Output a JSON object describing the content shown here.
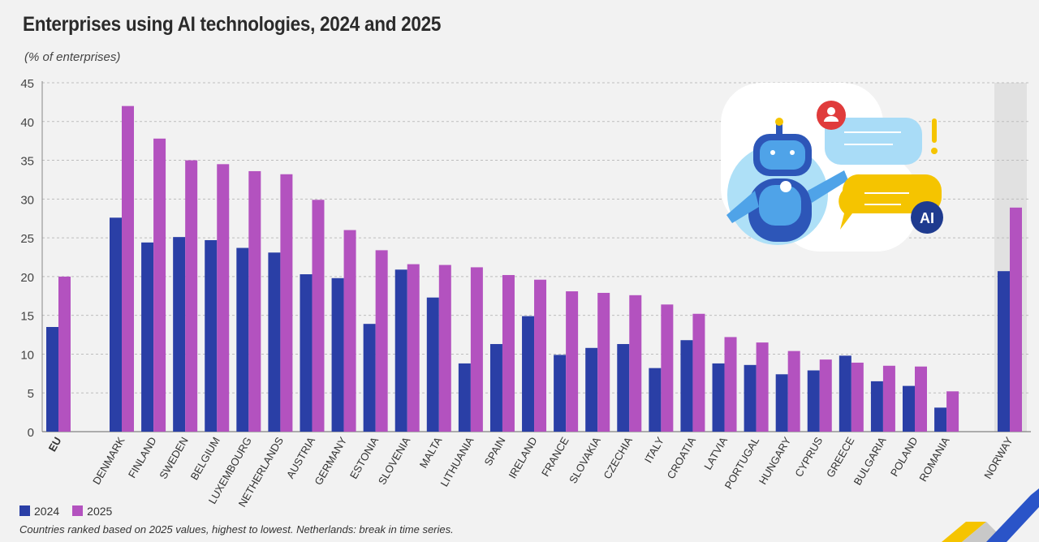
{
  "title": "Enterprises using AI technologies, 2024 and 2025",
  "subtitle": "(% of enterprises)",
  "footnote": "Countries ranked based on 2025 values, highest to lowest. Netherlands: break in time series.",
  "colors": {
    "2024": "#2a3fa6",
    "2025": "#b352bf",
    "norway_band": "#e1e1e1"
  },
  "chart_data": {
    "type": "bar",
    "title": "Enterprises using AI technologies, 2024 and 2025",
    "ylabel": "(% of enterprises)",
    "ylim": [
      0,
      45
    ],
    "yticks": [
      0,
      5,
      10,
      15,
      20,
      25,
      30,
      35,
      40,
      45
    ],
    "grid": true,
    "legend_position": "bottom-left",
    "categories": [
      "EU",
      "DENMARK",
      "FINLAND",
      "SWEDEN",
      "BELGIUM",
      "LUXEMBOURG",
      "NETHERLANDS",
      "AUSTRIA",
      "GERMANY",
      "ESTONIA",
      "SLOVENIA",
      "MALTA",
      "LITHUANIA",
      "SPAIN",
      "IRELAND",
      "FRANCE",
      "SLOVAKIA",
      "CZECHIA",
      "ITALY",
      "CROATIA",
      "LATVIA",
      "PORTUGAL",
      "HUNGARY",
      "CYPRUS",
      "GREECE",
      "BULGARIA",
      "POLAND",
      "ROMANIA",
      "NORWAY"
    ],
    "series": [
      {
        "name": "2024",
        "values": [
          13.5,
          27.6,
          24.4,
          25.1,
          24.7,
          23.7,
          23.1,
          20.3,
          19.8,
          13.9,
          20.9,
          17.3,
          8.8,
          11.3,
          14.9,
          9.9,
          10.8,
          11.3,
          8.2,
          11.8,
          8.8,
          8.6,
          7.4,
          7.9,
          9.8,
          6.5,
          5.9,
          3.1,
          20.7
        ]
      },
      {
        "name": "2025",
        "values": [
          20.0,
          42.0,
          37.8,
          35.0,
          34.5,
          33.6,
          33.2,
          29.9,
          26.0,
          23.4,
          21.6,
          21.5,
          21.2,
          20.2,
          19.6,
          18.1,
          17.9,
          17.6,
          16.4,
          15.2,
          12.2,
          11.5,
          10.4,
          9.3,
          8.9,
          8.5,
          8.4,
          5.2,
          28.9
        ]
      }
    ]
  },
  "illustration": {
    "badge": "AI"
  }
}
